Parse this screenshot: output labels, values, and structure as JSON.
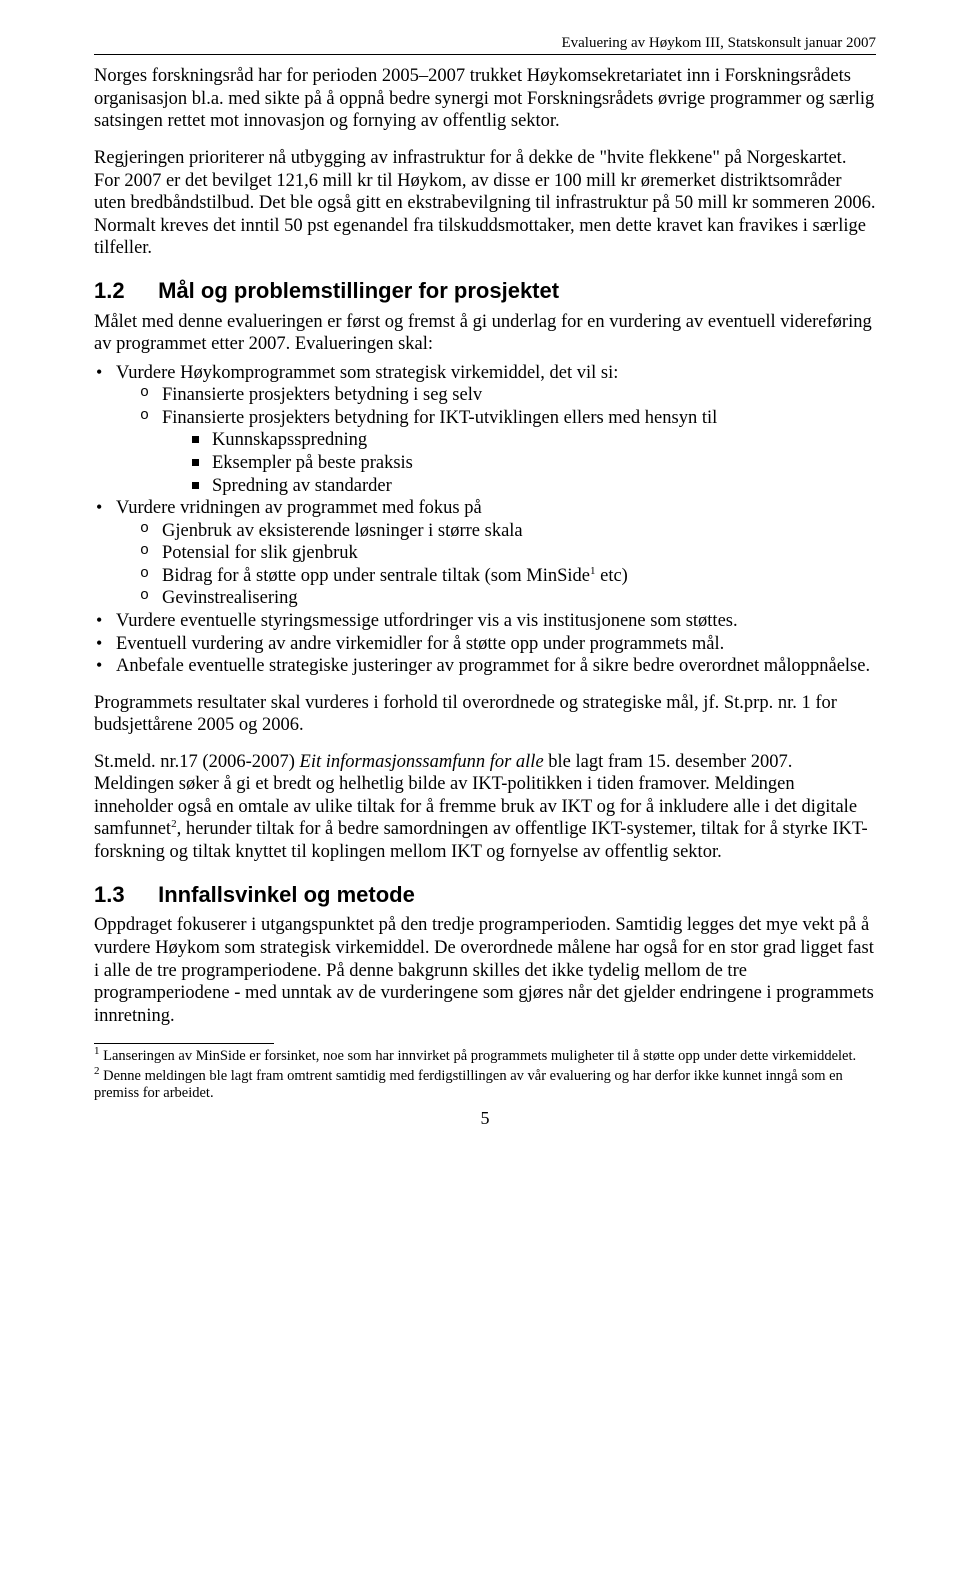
{
  "header": "Evaluering av Høykom III, Statskonsult januar 2007",
  "para1": "Norges forskningsråd har for perioden 2005–2007 trukket Høykomsekretariatet inn i Forskningsrådets organisasjon bl.a. med sikte på å oppnå bedre synergi mot Forskningsrådets øvrige programmer og særlig satsingen rettet mot innovasjon og fornying av offentlig sektor.",
  "para2": "Regjeringen prioriterer nå utbygging av infrastruktur for å dekke de \"hvite flekkene\" på Norgeskartet. For 2007 er det bevilget 121,6 mill kr til Høykom, av disse er 100 mill kr øremerket distriktsområder uten bredbåndstilbud. Det ble også gitt en ekstrabevilgning til infrastruktur på 50 mill kr sommeren 2006. Normalt kreves det inntil 50 pst egenandel fra tilskuddsmottaker, men dette kravet kan fravikes i særlige tilfeller.",
  "section12": {
    "num": "1.2",
    "title": "Mål og problemstillinger for prosjektet"
  },
  "para3": "Målet med denne evalueringen er først og fremst å gi underlag for en vurdering av eventuell videreføring av programmet etter 2007. Evalueringen skal:",
  "b1": "Vurdere Høykomprogrammet som strategisk virkemiddel, det vil si:",
  "b1a": "Finansierte prosjekters betydning i seg selv",
  "b1b": "Finansierte prosjekters betydning for IKT-utviklingen ellers med hensyn til",
  "b1b1": "Kunnskapsspredning",
  "b1b2": "Eksempler på beste praksis",
  "b1b3": "Spredning av standarder",
  "b2": "Vurdere vridningen av programmet med fokus på",
  "b2a": "Gjenbruk av eksisterende løsninger i større skala",
  "b2b": "Potensial for slik gjenbruk",
  "b2c_pre": "Bidrag for å støtte opp under sentrale tiltak (som MinSide",
  "b2c_suf": " etc)",
  "b2d": "Gevinstrealisering",
  "b3": "Vurdere eventuelle styringsmessige utfordringer vis a vis institusjonene som støttes.",
  "b4": "Eventuell vurdering av andre virkemidler for å støtte opp under programmets mål.",
  "b5": "Anbefale eventuelle strategiske justeringer av programmet for å sikre bedre overordnet måloppnåelse.",
  "para4": "Programmets resultater skal vurderes i forhold til overordnede og strategiske mål, jf. St.prp. nr. 1 for budsjettårene 2005 og 2006.",
  "para5_pre": "St.meld. nr.17 (2006-2007) ",
  "para5_em": "Eit informasjonssamfunn for alle",
  "para5_mid": " ble lagt fram 15. desember 2007. Meldingen søker å gi et bredt og helhetlig bilde av IKT-politikken i tiden framover. Meldingen inneholder også en omtale av ulike tiltak for å fremme bruk av IKT og for å inkludere alle i det digitale samfunnet",
  "para5_suf": ", herunder tiltak for å bedre samordningen av offentlige IKT-systemer, tiltak for å styrke IKT-forskning og tiltak knyttet til koplingen mellom IKT og fornyelse av offentlig sektor.",
  "section13": {
    "num": "1.3",
    "title": "Innfallsvinkel og metode"
  },
  "para6": "Oppdraget fokuserer i utgangspunktet på den tredje programperioden. Samtidig legges det mye vekt på å vurdere Høykom som strategisk virkemiddel. De overordnede målene har også for en stor grad ligget fast i alle de tre programperiodene. På denne bakgrunn skilles det ikke tydelig mellom de tre programperiodene - med unntak av de vurderingene som gjøres når det gjelder endringene i programmets innretning.",
  "fn1": " Lanseringen av MinSide er forsinket, noe som har innvirket på programmets muligheter til å støtte opp under dette virkemiddelet.",
  "fn2": " Denne meldingen ble lagt fram omtrent samtidig med ferdigstillingen av vår evaluering og har derfor ikke kunnet inngå som en premiss for arbeidet.",
  "pagenum": "5",
  "sup1": "1",
  "sup2": "2"
}
